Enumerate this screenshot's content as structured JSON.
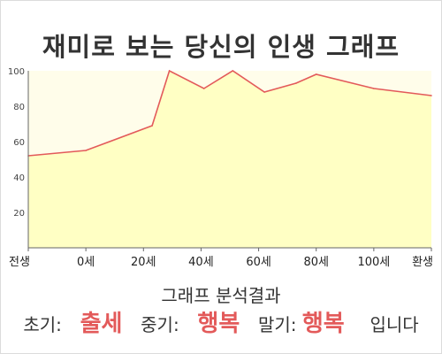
{
  "chart_data": {
    "type": "area",
    "title": "재미로 보는 당신의 인생 그래프",
    "x_tick_labels": [
      "전생",
      "0세",
      "20세",
      "40세",
      "60세",
      "80세",
      "100세",
      "환생"
    ],
    "y_ticks": [
      20,
      40,
      60,
      80,
      100
    ],
    "ylim": [
      0,
      100
    ],
    "grid": false,
    "series": [
      {
        "points": [
          {
            "x": -20,
            "y": 52
          },
          {
            "x": 0,
            "y": 55
          },
          {
            "x": 23,
            "y": 69
          },
          {
            "x": 29,
            "y": 100
          },
          {
            "x": 41,
            "y": 90
          },
          {
            "x": 51,
            "y": 100
          },
          {
            "x": 62,
            "y": 88
          },
          {
            "x": 73,
            "y": 93
          },
          {
            "x": 80,
            "y": 98
          },
          {
            "x": 100,
            "y": 90
          },
          {
            "x": 120,
            "y": 86
          }
        ]
      }
    ],
    "colors": {
      "line": "#e35a5a",
      "fill": "#ffffc4",
      "plot_bg": "#fffdea"
    }
  },
  "result": {
    "heading": "그래프 분석결과",
    "early_label": "초기:",
    "early_value": "출세",
    "middle_label": "중기:",
    "middle_value": "행복",
    "late_label": "말기:",
    "late_value": "행복",
    "ending": "입니다"
  }
}
